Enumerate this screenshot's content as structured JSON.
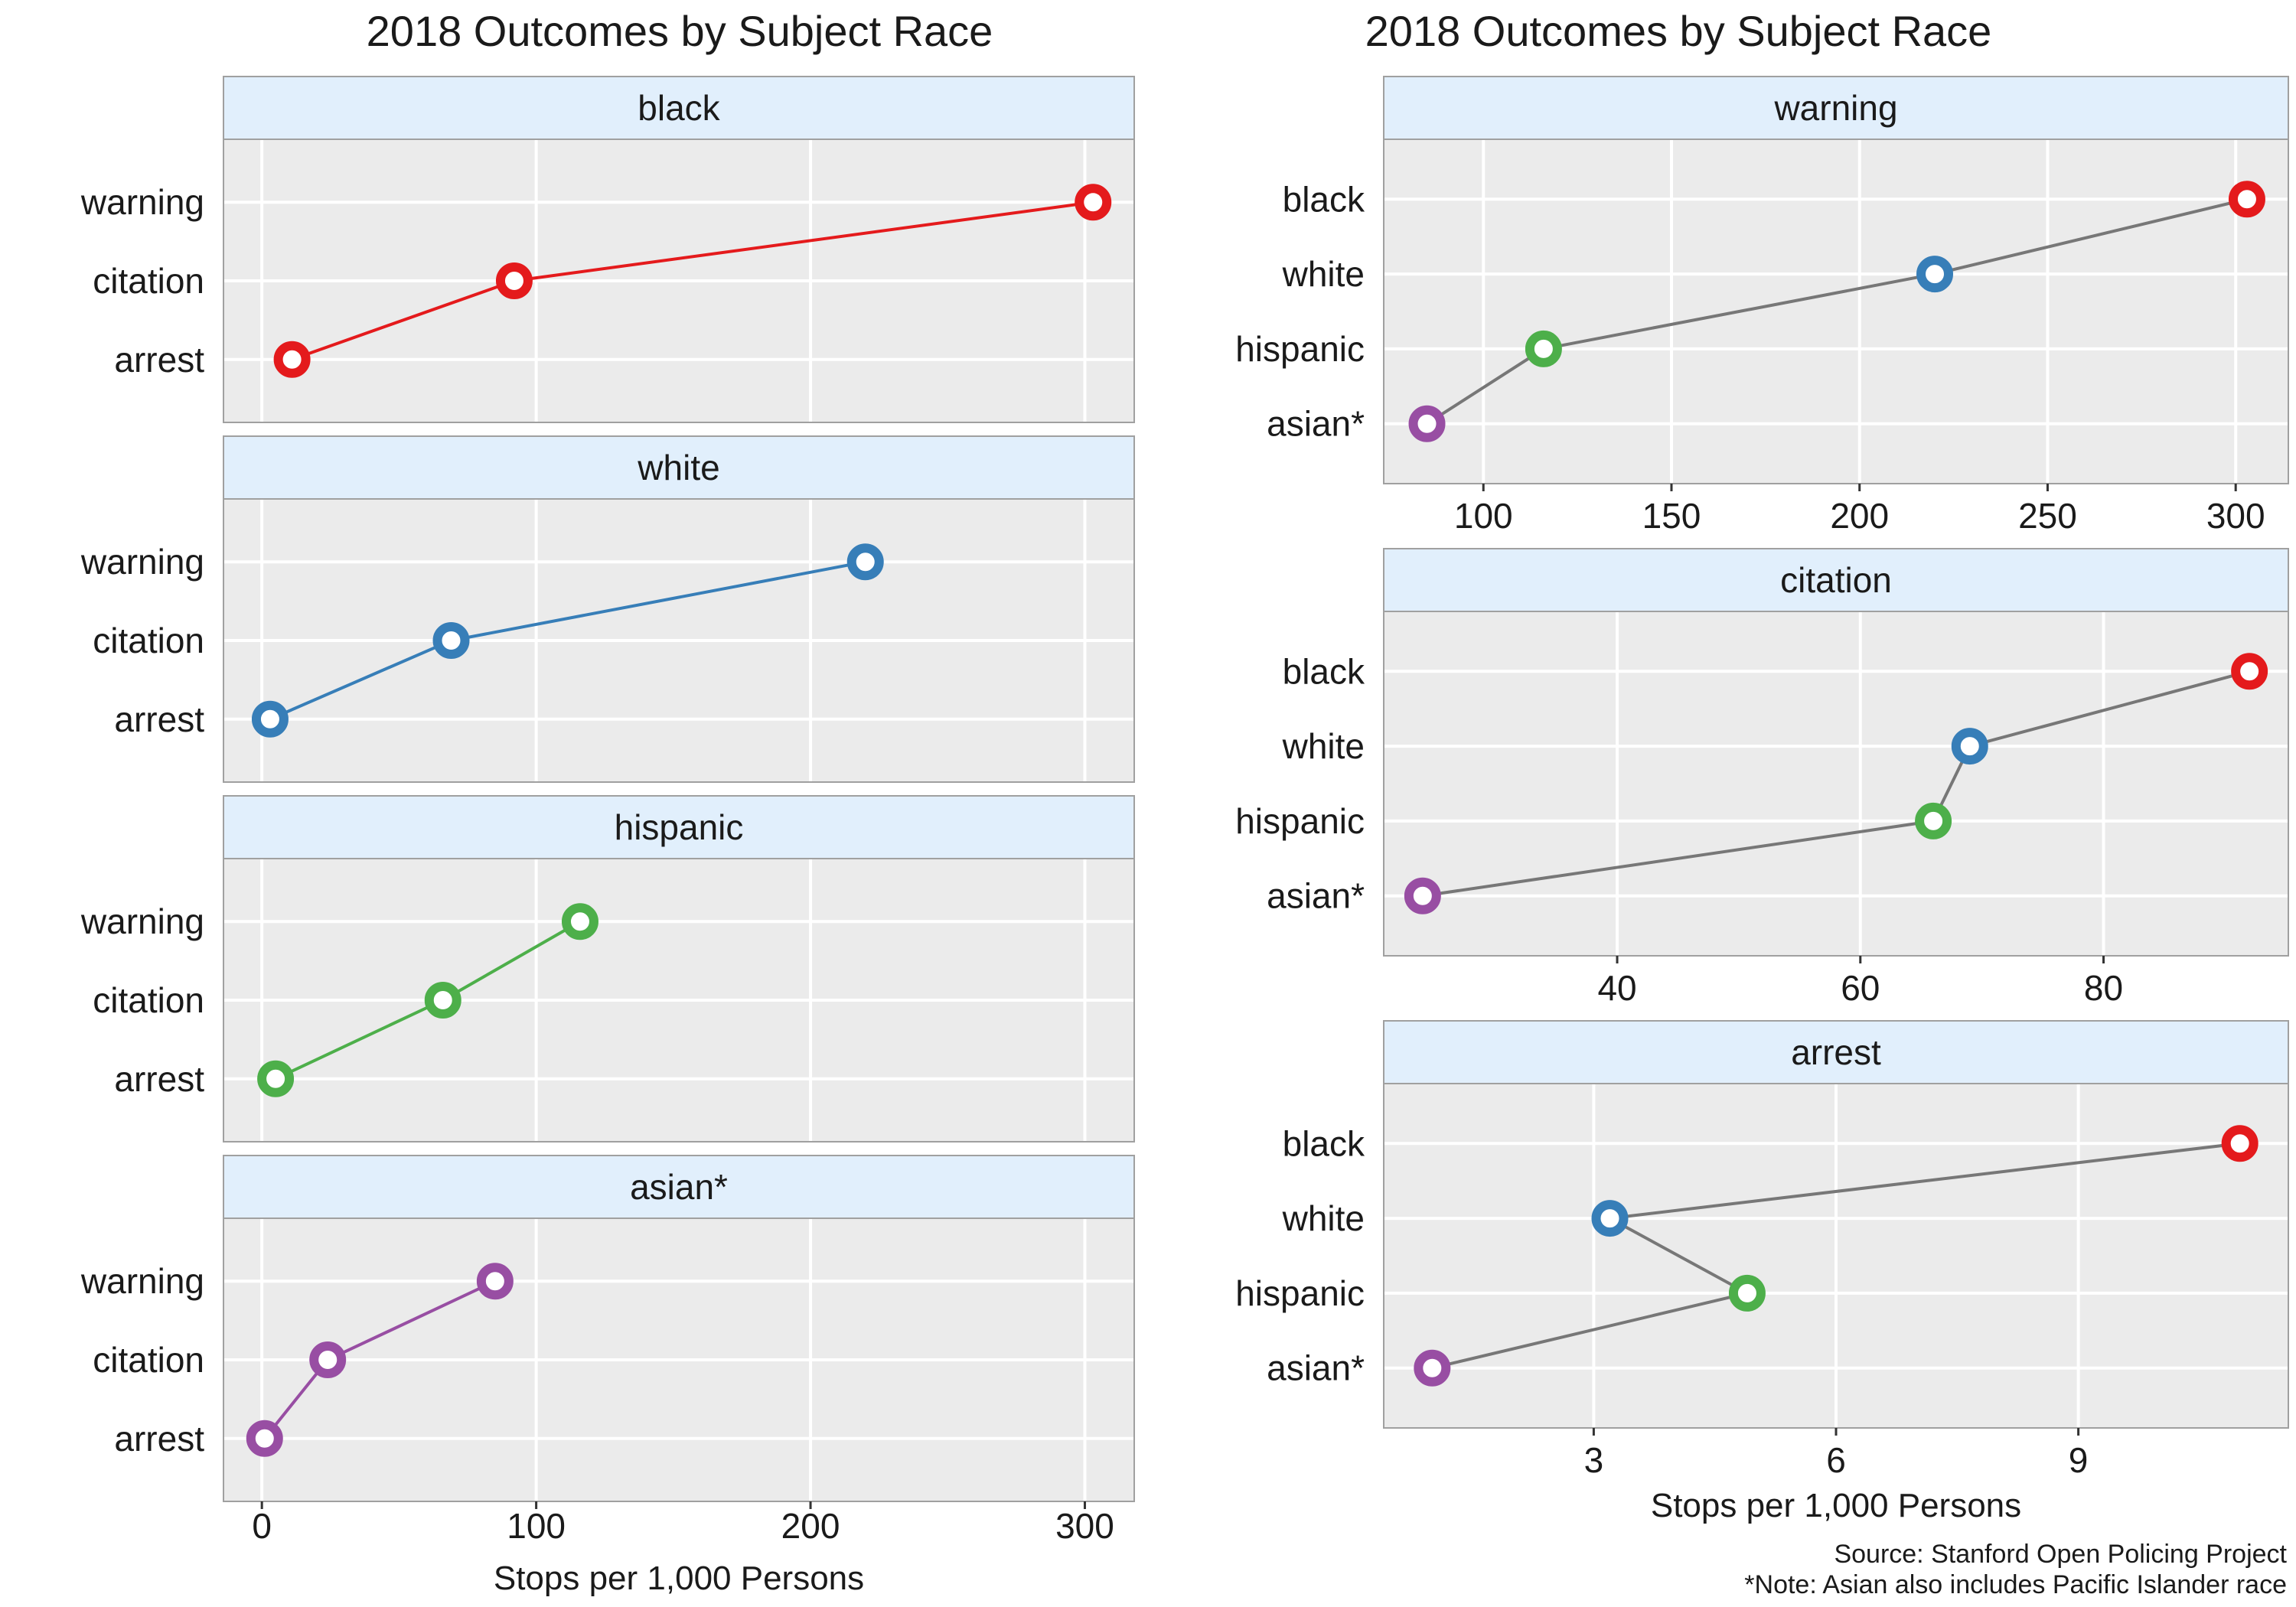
{
  "chart_data": [
    {
      "type": "line",
      "title": "2018 Outcomes by Subject Race",
      "xlabel": "Stops per 1,000 Persons",
      "ylabel": "",
      "xlim": [
        -14,
        318
      ],
      "xticks": [
        0,
        100,
        200,
        300
      ],
      "categories": [
        "warning",
        "citation",
        "arrest"
      ],
      "panels": [
        {
          "name": "black",
          "color": "#e41a1c",
          "values": [
            303,
            92,
            11
          ]
        },
        {
          "name": "white",
          "color": "#377eb8",
          "values": [
            220,
            69,
            3
          ]
        },
        {
          "name": "hispanic",
          "color": "#4daf4a",
          "values": [
            116,
            66,
            5
          ]
        },
        {
          "name": "asian*",
          "color": "#984ea3",
          "values": [
            85,
            24,
            1
          ]
        }
      ]
    },
    {
      "type": "line",
      "title": "2018 Outcomes by Subject Race",
      "xlabel": "Stops per 1,000 Persons",
      "ylabel": "",
      "categories": [
        "black",
        "white",
        "hispanic",
        "asian*"
      ],
      "category_colors": {
        "black": "#e41a1c",
        "white": "#377eb8",
        "hispanic": "#4daf4a",
        "asian*": "#984ea3"
      },
      "line_color": "#777777",
      "panels": [
        {
          "name": "warning",
          "xlim": [
            73.5,
            314
          ],
          "xticks": [
            100,
            150,
            200,
            250,
            300
          ],
          "values": [
            303,
            220,
            116,
            85
          ]
        },
        {
          "name": "citation",
          "xlim": [
            20.8,
            95.2
          ],
          "xticks": [
            40,
            60,
            80
          ],
          "values": [
            92,
            69,
            66,
            24
          ]
        },
        {
          "name": "arrest",
          "xlim": [
            0.4,
            11.6
          ],
          "xticks": [
            3,
            6,
            9
          ],
          "values": [
            11,
            3.2,
            4.9,
            1
          ]
        }
      ]
    }
  ],
  "caption": {
    "source": "Source: Stanford Open Policing Project",
    "note": "*Note: Asian also includes Pacific Islander race"
  }
}
